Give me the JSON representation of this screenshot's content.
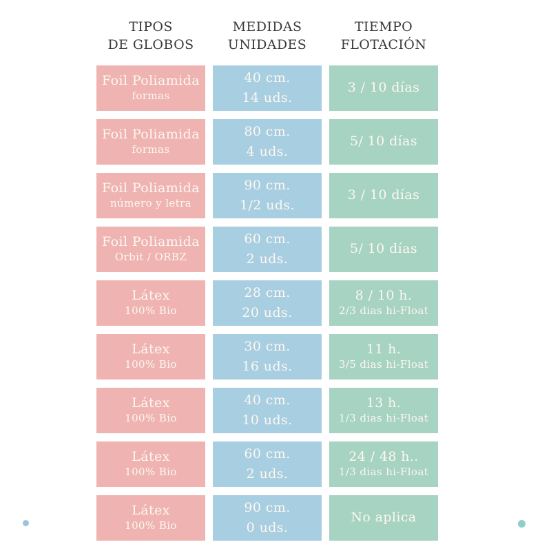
{
  "colors": {
    "pink": "#efb4b1",
    "blue": "#a8cee1",
    "green": "#a6d3c2",
    "text_light": "#fdf7f2",
    "text_dark": "#3b3b3b",
    "dot_blue": "#9cc3da",
    "dot_teal": "#8fcfc9"
  },
  "header": {
    "columns": [
      {
        "line1": "TIPOS",
        "line2": "DE GLOBOS"
      },
      {
        "line1": "MEDIDAS",
        "line2": "UNIDADES"
      },
      {
        "line1": "TIEMPO",
        "line2": "FLOTACIÓN"
      }
    ]
  },
  "table": {
    "rows": [
      {
        "tipo": "Foil Poliamida",
        "tipo_sub": "formas",
        "medida": "40 cm.",
        "unidades": "14 uds.",
        "flotacion": "3 / 10 días",
        "flotacion_sub": ""
      },
      {
        "tipo": "Foil Poliamida",
        "tipo_sub": "formas",
        "medida": "80 cm.",
        "unidades": "4 uds.",
        "flotacion": "5/ 10 días",
        "flotacion_sub": ""
      },
      {
        "tipo": "Foil Poliamida",
        "tipo_sub": "número y letra",
        "medida": "90 cm.",
        "unidades": "1/2 uds.",
        "flotacion": "3 / 10 días",
        "flotacion_sub": ""
      },
      {
        "tipo": "Foil Poliamida",
        "tipo_sub": "Orbit / ORBZ",
        "medida": "60 cm.",
        "unidades": "2 uds.",
        "flotacion": "5/ 10 días",
        "flotacion_sub": ""
      },
      {
        "tipo": "Látex",
        "tipo_sub": "100% Bio",
        "medida": "28 cm.",
        "unidades": "20 uds.",
        "flotacion": "8 / 10 h.",
        "flotacion_sub": "2/3 dias hi-Float"
      },
      {
        "tipo": "Látex",
        "tipo_sub": "100% Bio",
        "medida": "30 cm.",
        "unidades": "16 uds.",
        "flotacion": "11 h.",
        "flotacion_sub": "3/5 dias hi-Float"
      },
      {
        "tipo": "Látex",
        "tipo_sub": "100% Bio",
        "medida": "40 cm.",
        "unidades": "10 uds.",
        "flotacion": "13 h.",
        "flotacion_sub": "1/3 dias hi-Float"
      },
      {
        "tipo": "Látex",
        "tipo_sub": "100% Bio",
        "medida": "60 cm.",
        "unidades": "2 uds.",
        "flotacion": "24 / 48 h..",
        "flotacion_sub": "1/3 dias hi-Float"
      },
      {
        "tipo": "Látex",
        "tipo_sub": "100% Bio",
        "medida": "90 cm.",
        "unidades": "0 uds.",
        "flotacion": "No aplica",
        "flotacion_sub": ""
      }
    ]
  },
  "chart_data": {
    "type": "table",
    "title": "",
    "columns": [
      "TIPOS DE GLOBOS",
      "MEDIDAS UNIDADES",
      "TIEMPO FLOTACIÓN"
    ],
    "rows": [
      [
        "Foil Poliamida formas",
        "40 cm. 14 uds.",
        "3 / 10 días"
      ],
      [
        "Foil Poliamida formas",
        "80 cm. 4 uds.",
        "5/ 10 días"
      ],
      [
        "Foil Poliamida número y letra",
        "90 cm. 1/2 uds.",
        "3 / 10 días"
      ],
      [
        "Foil Poliamida Orbit / ORBZ",
        "60 cm. 2 uds.",
        "5/ 10 días"
      ],
      [
        "Látex 100% Bio",
        "28 cm. 20 uds.",
        "8 / 10 h. 2/3 dias hi-Float"
      ],
      [
        "Látex 100% Bio",
        "30 cm. 16 uds.",
        "11 h. 3/5 dias hi-Float"
      ],
      [
        "Látex 100% Bio",
        "40 cm. 10 uds.",
        "13 h. 1/3 dias hi-Float"
      ],
      [
        "Látex 100% Bio",
        "60 cm. 2 uds.",
        "24 / 48 h.. 1/3 dias hi-Float"
      ],
      [
        "Látex 100% Bio",
        "90 cm. 0 uds.",
        "No aplica"
      ]
    ]
  }
}
